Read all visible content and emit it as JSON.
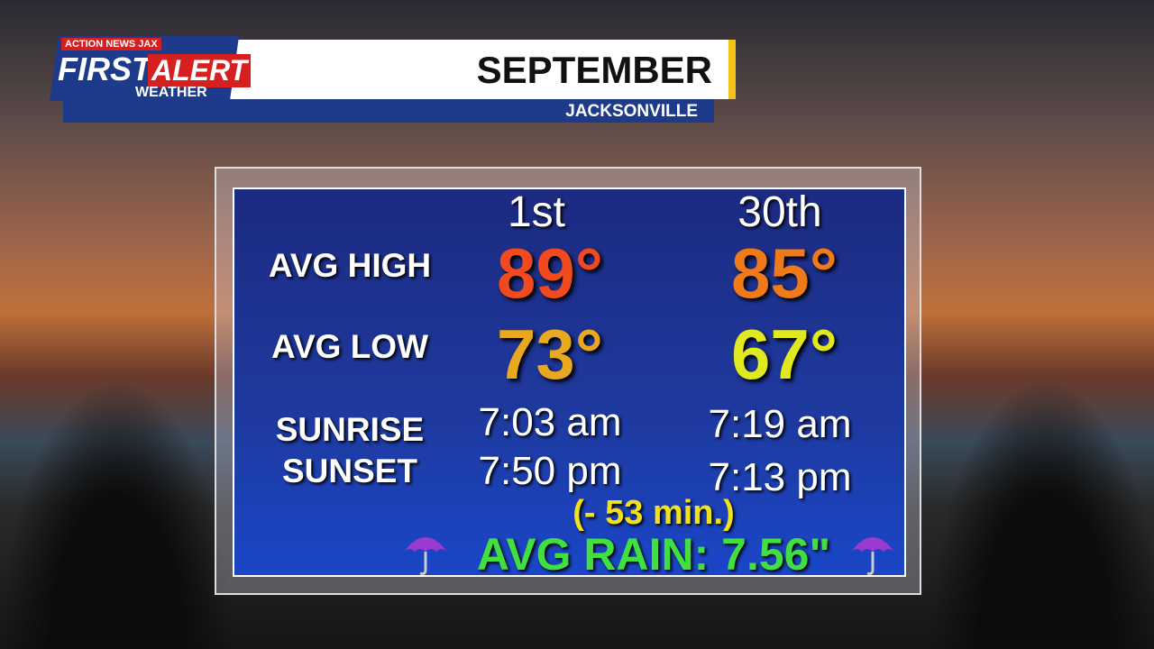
{
  "header": {
    "network": "ACTION NEWS JAX",
    "brand_first": "FIRST",
    "brand_alert": "ALERT",
    "brand_weather": "WEATHER",
    "title": "SEPTEMBER",
    "location": "JACKSONVILLE"
  },
  "table": {
    "columns": [
      "1st",
      "30th"
    ],
    "rows": [
      {
        "label": "AVG HIGH",
        "values": [
          "89°",
          "85°"
        ]
      },
      {
        "label": "AVG LOW",
        "values": [
          "73°",
          "67°"
        ]
      },
      {
        "label": "SUNRISE",
        "values": [
          "7:03 am",
          "7:19 am"
        ]
      },
      {
        "label": "SUNSET",
        "values": [
          "7:50 pm",
          "7:13 pm"
        ]
      }
    ],
    "daylight_change": "(- 53 min.)",
    "rain": "AVG RAIN: 7.56\""
  }
}
